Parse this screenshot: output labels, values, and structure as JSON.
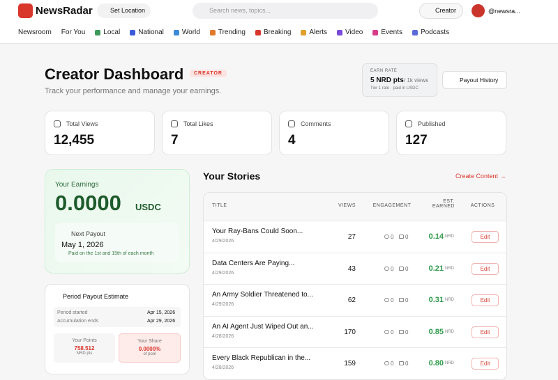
{
  "header": {
    "logo": "NewsRadar",
    "location": "Set Location",
    "search_placeholder": "Search news, topics...",
    "creator_button": "Creator",
    "user": "@newsra..."
  },
  "nav": [
    "Newsroom",
    "For You",
    "Local",
    "National",
    "World",
    "Trending",
    "Breaking",
    "Alerts",
    "Video",
    "Events",
    "Podcasts"
  ],
  "page": {
    "title": "Creator Dashboard",
    "badge": "CREATOR",
    "subtitle": "Track your performance and manage your earnings."
  },
  "earn_rate": {
    "label": "EARN RATE",
    "rate": "5 NRD pts",
    "per": "/ 1k views",
    "note": "Tier 1 rate · paid in USDC"
  },
  "payout_history": "Payout History",
  "stats": [
    {
      "label": "Total Views",
      "value": "12,455"
    },
    {
      "label": "Total Likes",
      "value": "7"
    },
    {
      "label": "Comments",
      "value": "4"
    },
    {
      "label": "Published",
      "value": "127"
    }
  ],
  "earnings": {
    "label": "Your Earnings",
    "amount": "0.0000",
    "currency": "USDC",
    "next_label": "Next Payout",
    "next_date": "May 1, 2026",
    "next_note": "Paid on the 1st and 15th of each month"
  },
  "period": {
    "title": "Period Payout Estimate",
    "rows": [
      [
        "Period started",
        "Apr 15, 2026"
      ],
      [
        "Accumulation ends",
        "Apr 29, 2026"
      ]
    ],
    "points_label": "Your Points",
    "points": "758.512",
    "points_unit": "NRD pts",
    "share_label": "Your Share",
    "share": "0.0000%",
    "share_unit": "of pool"
  },
  "stories": {
    "title": "Your Stories",
    "create": "Create Content →",
    "columns": [
      "TITLE",
      "VIEWS",
      "ENGAGEMENT",
      "EST. EARNED",
      "ACTIONS"
    ],
    "rows": [
      {
        "title": "Your Ray-Bans Could Soon...",
        "date": "4/29/2026",
        "views": "27",
        "likes": "0",
        "comments": "0",
        "earned": "0.14",
        "unit": "NRD",
        "action": "Edit"
      },
      {
        "title": "Data Centers Are Paying...",
        "date": "4/29/2026",
        "views": "43",
        "likes": "0",
        "comments": "0",
        "earned": "0.21",
        "unit": "NRD",
        "action": "Edit"
      },
      {
        "title": "An Army Soldier Threatened to...",
        "date": "4/29/2026",
        "views": "62",
        "likes": "0",
        "comments": "0",
        "earned": "0.31",
        "unit": "NRD",
        "action": "Edit"
      },
      {
        "title": "An AI Agent Just Wiped Out an...",
        "date": "4/28/2026",
        "views": "170",
        "likes": "0",
        "comments": "0",
        "earned": "0.85",
        "unit": "NRD",
        "action": "Edit"
      },
      {
        "title": "Every Black Republican in the...",
        "date": "4/28/2026",
        "views": "159",
        "likes": "0",
        "comments": "0",
        "earned": "0.80",
        "unit": "NRD",
        "action": "Edit"
      }
    ]
  }
}
